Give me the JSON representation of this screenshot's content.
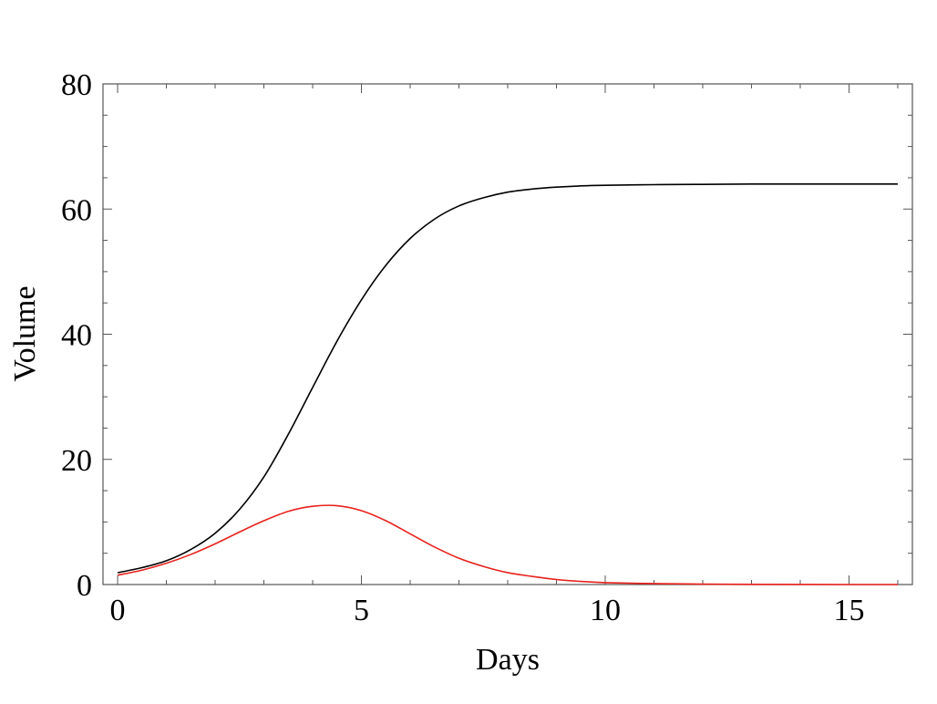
{
  "chart_data": {
    "type": "line",
    "title": "",
    "xlabel": "Days",
    "ylabel": "Volume",
    "xlim": [
      -0.3,
      16.3
    ],
    "ylim": [
      0,
      80
    ],
    "xticks": [
      0,
      5,
      10,
      15
    ],
    "yticks": [
      0,
      20,
      40,
      60,
      80
    ],
    "grid": false,
    "legend": "none",
    "series": [
      {
        "color": "#000000",
        "x": [
          0,
          0.5,
          1,
          1.5,
          2,
          2.5,
          3,
          3.5,
          4,
          4.5,
          5,
          5.5,
          6,
          6.5,
          7,
          7.5,
          8,
          8.5,
          9,
          9.5,
          10,
          11,
          12,
          13,
          14,
          15,
          16
        ],
        "y": [
          1.9,
          2.7,
          3.8,
          5.6,
          8.2,
          12.0,
          17.2,
          24.0,
          31.5,
          38.9,
          45.5,
          51.0,
          55.3,
          58.4,
          60.5,
          61.8,
          62.7,
          63.2,
          63.5,
          63.7,
          63.8,
          63.9,
          63.95,
          64.0,
          64.0,
          64.0,
          64.0
        ]
      },
      {
        "color": "#e8211c",
        "x": [
          0,
          0.5,
          1,
          1.5,
          2,
          2.5,
          3,
          3.5,
          4,
          4.5,
          5,
          5.5,
          6,
          6.5,
          7,
          7.5,
          8,
          8.5,
          9,
          9.5,
          10,
          11,
          12,
          13,
          14,
          15,
          16
        ],
        "y": [
          1.5,
          2.3,
          3.4,
          4.8,
          6.5,
          8.4,
          10.2,
          11.7,
          12.5,
          12.6,
          11.8,
          10.2,
          8.1,
          6.0,
          4.2,
          2.9,
          1.9,
          1.3,
          0.8,
          0.5,
          0.3,
          0.15,
          0.07,
          0.03,
          0.01,
          0.0,
          0.0
        ]
      }
    ]
  }
}
